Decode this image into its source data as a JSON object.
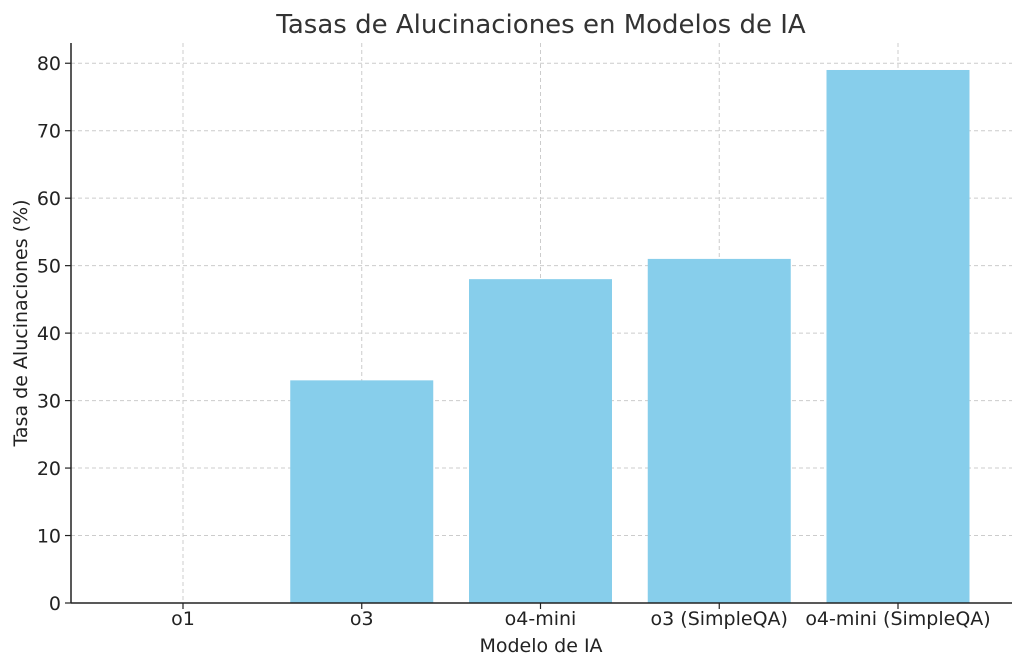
{
  "chart_data": {
    "type": "bar",
    "title": "Tasas de Alucinaciones en Modelos de IA",
    "xlabel": "Modelo de IA",
    "ylabel": "Tasa de Alucinaciones (%)",
    "categories": [
      "o1",
      "o3",
      "o4-mini",
      "o3 (SimpleQA)",
      "o4-mini (SimpleQA)"
    ],
    "values": [
      0,
      33,
      48,
      51,
      79
    ],
    "ylim": [
      0,
      83
    ],
    "yticks": [
      0,
      10,
      20,
      30,
      40,
      50,
      60,
      70,
      80
    ],
    "grid": true,
    "bar_color": "#87CEEB"
  }
}
